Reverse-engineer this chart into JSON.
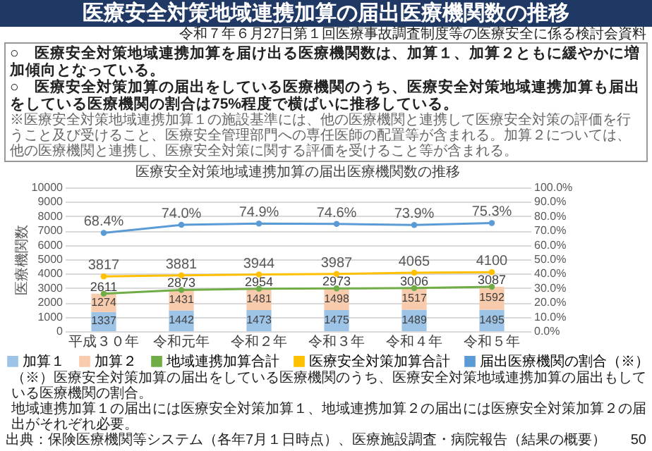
{
  "chart_data": {
    "type": "bar",
    "title": "医療安全対策地域連携加算の届出医療機関数の推移",
    "subtitle": "医療安全対策地域連携加算の届出医療機関数の推移",
    "ylabel": "医療機関数",
    "annotations": [
      "令和７年６月27日第１回医療事故調査制度等の医療安全に係る検討会資料",
      "○　医療安全対策地域連携加算を届け出る医療機関数は、加算１、加算２ともに緩やかに増加傾向となっている。",
      "○　医療安全対策加算の届出をしている医療機関のうち、医療安全対策地域連携加算も届出をしている医療機関の割合は75%程度で横ばいに推移している。",
      "※医療安全対策地域連携加算１の施設基準には、他の医療機関と連携して医療安全対策の評価を行うこと及び受けること、医療安全管理部門への専任医師の配置等が含まれる。加算２については、他の医療機関と連携し、医療安全対策に関する評価を受けること等が含まれる。",
      "（※）医療安全対策加算の届出をしている医療機関のうち、医療安全対策地域連携加算の届出もしている医療機関の割合。",
      "地域連携加算１の届出には医療安全対策加算１、地域連携加算２の届出には医療安全対策加算２の届出がそれぞれ必要。",
      "出典：保険医療機関等システム（各年7月１日時点）、医療施設調査・病院報告（結果の概要）",
      "50"
    ],
    "categories": [
      "平成３０年",
      "令和元年",
      "令和２年",
      "令和３年",
      "令和４年",
      "令和５年"
    ],
    "stacked": true,
    "series": [
      {
        "name": "加算１",
        "color": "#9dc3e6",
        "values": [
          1337,
          1442,
          1473,
          1475,
          1489,
          1495
        ]
      },
      {
        "name": "加算２",
        "color": "#f8cbad",
        "values": [
          1274,
          1431,
          1481,
          1498,
          1517,
          1592
        ]
      },
      {
        "name": "地域連携加算合計",
        "type": "line",
        "color": "#70ad47",
        "values": [
          2611,
          2873,
          2954,
          2973,
          3006,
          3087
        ]
      },
      {
        "name": "医療安全対策加算合計",
        "type": "line",
        "color": "#ffc000",
        "values": [
          3817,
          3881,
          3944,
          3987,
          4065,
          4100
        ]
      },
      {
        "name": "届出医療機関の割合（※）",
        "type": "line",
        "axis": "y2",
        "color": "#5b9bd5",
        "values": [
          68.4,
          74.0,
          74.9,
          74.6,
          73.9,
          75.3
        ],
        "value_labels": [
          "68.4%",
          "74.0%",
          "74.9%",
          "74.6%",
          "73.9%",
          "75.3%"
        ]
      }
    ],
    "ylim": [
      0,
      10000
    ],
    "yticks": [
      0,
      1000,
      2000,
      3000,
      4000,
      5000,
      6000,
      7000,
      8000,
      9000,
      10000
    ],
    "y2lim": [
      0,
      100
    ],
    "y2ticks": [
      {
        "value": 0,
        "label": "0.0%"
      },
      {
        "value": 10,
        "label": "10.0%"
      },
      {
        "value": 20,
        "label": "20.0%"
      },
      {
        "value": 30,
        "label": "30.0%"
      },
      {
        "value": 40,
        "label": "40.0%"
      },
      {
        "value": 50,
        "label": "50.0%"
      },
      {
        "value": 60,
        "label": "60.0%"
      },
      {
        "value": 70,
        "label": "70.0%"
      },
      {
        "value": 80,
        "label": "80.0%"
      },
      {
        "value": 90,
        "label": "90.0%"
      },
      {
        "value": 100,
        "label": "100.0%"
      }
    ],
    "grid": "y",
    "legend": "bottom",
    "data_labels": true,
    "marker": "circle"
  }
}
